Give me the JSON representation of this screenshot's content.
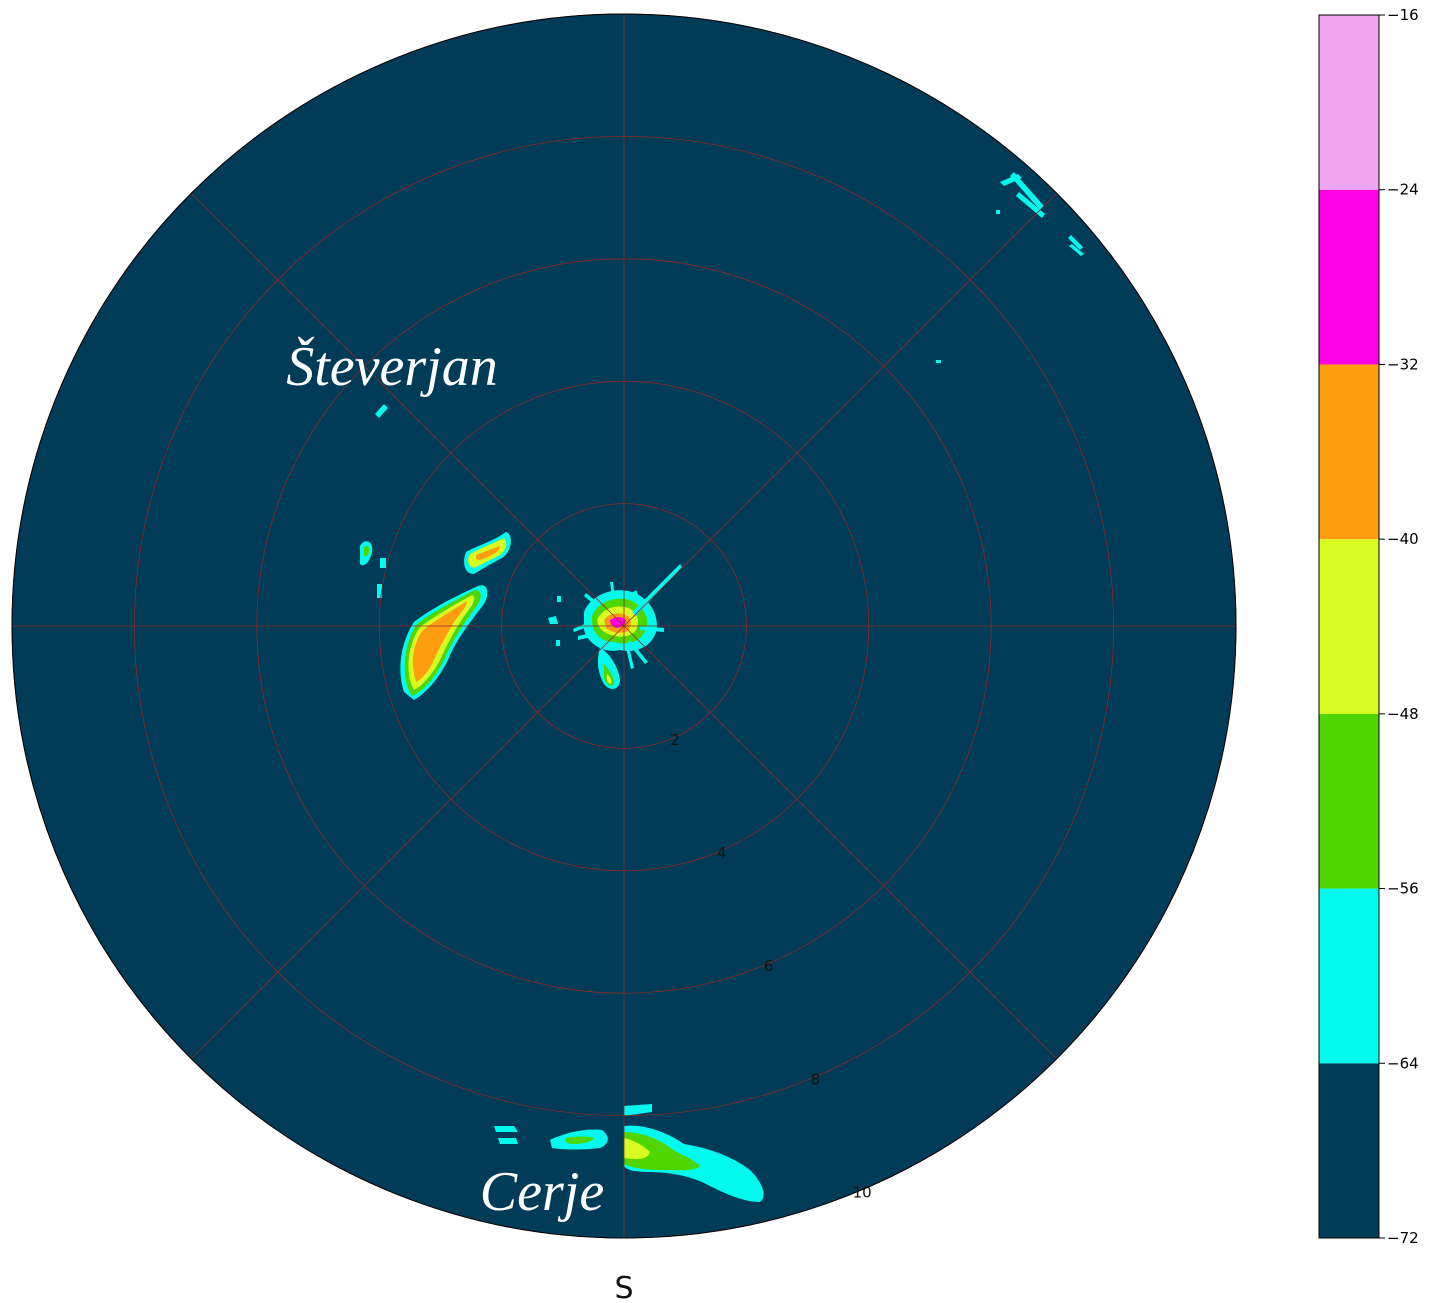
{
  "chart_data": {
    "type": "heatmap",
    "projection": "polar",
    "range_rings": [
      2,
      4,
      6,
      8,
      10
    ],
    "range_max": 10,
    "radial_labels": [
      "2",
      "4",
      "6",
      "8",
      "10"
    ],
    "azimuth_label": "S",
    "grid": true,
    "grid_color": "#8b2a2a",
    "background_color": "#003b58",
    "place_labels": [
      {
        "name": "Števerjan"
      },
      {
        "name": "Cerje"
      }
    ],
    "colorbar": {
      "ticks": [
        "−16",
        "−24",
        "−32",
        "−40",
        "−48",
        "−56",
        "−64",
        "−72"
      ],
      "min": -72,
      "max": -16,
      "bands": [
        {
          "from": -72,
          "to": -64,
          "color": "#003b58"
        },
        {
          "from": -64,
          "to": -56,
          "color": "#00fbee"
        },
        {
          "from": -56,
          "to": -48,
          "color": "#4fd600"
        },
        {
          "from": -48,
          "to": -40,
          "color": "#d8fb22"
        },
        {
          "from": -40,
          "to": -32,
          "color": "#fe9d10"
        },
        {
          "from": -32,
          "to": -24,
          "color": "#fe00e3"
        },
        {
          "from": -24,
          "to": -16,
          "color": "#f0a6f0"
        }
      ]
    },
    "echoes": [
      {
        "name": "central-clutter",
        "r_km": 0.0,
        "max_level": -24
      },
      {
        "name": "steverjan-cell",
        "r_km": 3.2,
        "max_level": -32
      },
      {
        "name": "cerje-cell",
        "r_km": 9.8,
        "max_level": -48
      },
      {
        "name": "northeast-streaks",
        "r_km": 10.0,
        "max_level": -56
      }
    ]
  }
}
